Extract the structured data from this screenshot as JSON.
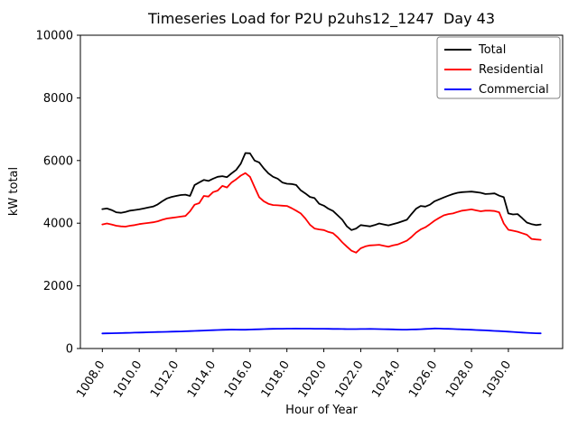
{
  "chart_data": {
    "type": "line",
    "title": "Timeseries Load for P2U p2uhs12_1247  Day 43",
    "xlabel": "Hour of Year",
    "ylabel": "kW total",
    "xlim": [
      1006.81,
      1032.94
    ],
    "ylim": [
      0,
      10000
    ],
    "grid": false,
    "legend_position": "upper right",
    "x_ticks": [
      1008,
      1010,
      1012,
      1014,
      1016,
      1018,
      1020,
      1022,
      1024,
      1026,
      1028,
      1030
    ],
    "x_tick_labels": [
      "1008.0",
      "1010.0",
      "1012.0",
      "1014.0",
      "1016.0",
      "1018.0",
      "1020.0",
      "1022.0",
      "1024.0",
      "1026.0",
      "1028.0",
      "1030.0"
    ],
    "y_ticks": [
      0,
      2000,
      4000,
      6000,
      8000,
      10000
    ],
    "y_tick_labels": [
      "0",
      "2000",
      "4000",
      "6000",
      "8000",
      "10000"
    ],
    "x": [
      1008.0,
      1008.25,
      1008.5,
      1008.75,
      1009.0,
      1009.25,
      1009.5,
      1009.75,
      1010.0,
      1010.25,
      1010.5,
      1010.75,
      1011.0,
      1011.25,
      1011.5,
      1011.75,
      1012.0,
      1012.25,
      1012.5,
      1012.75,
      1013.0,
      1013.25,
      1013.5,
      1013.75,
      1014.0,
      1014.25,
      1014.5,
      1014.75,
      1015.0,
      1015.25,
      1015.5,
      1015.75,
      1016.0,
      1016.25,
      1016.5,
      1016.75,
      1017.0,
      1017.25,
      1017.5,
      1017.75,
      1018.0,
      1018.25,
      1018.5,
      1018.75,
      1019.0,
      1019.25,
      1019.5,
      1019.75,
      1020.0,
      1020.25,
      1020.5,
      1020.75,
      1021.0,
      1021.25,
      1021.5,
      1021.75,
      1022.0,
      1022.25,
      1022.5,
      1022.75,
      1023.0,
      1023.25,
      1023.5,
      1023.75,
      1024.0,
      1024.25,
      1024.5,
      1024.75,
      1025.0,
      1025.25,
      1025.5,
      1025.75,
      1026.0,
      1026.25,
      1026.5,
      1026.75,
      1027.0,
      1027.25,
      1027.5,
      1027.75,
      1028.0,
      1028.25,
      1028.5,
      1028.75,
      1029.0,
      1029.25,
      1029.5,
      1029.75,
      1030.0,
      1030.25,
      1030.5,
      1030.75,
      1031.0,
      1031.25,
      1031.5,
      1031.75
    ],
    "series": [
      {
        "name": "Total",
        "color": "#000000",
        "values": [
          4450,
          4470,
          4420,
          4350,
          4330,
          4360,
          4400,
          4420,
          4440,
          4470,
          4500,
          4530,
          4600,
          4700,
          4790,
          4840,
          4870,
          4900,
          4910,
          4870,
          5220,
          5300,
          5380,
          5350,
          5420,
          5480,
          5500,
          5470,
          5590,
          5700,
          5900,
          6240,
          6230,
          6000,
          5940,
          5750,
          5590,
          5480,
          5420,
          5300,
          5260,
          5250,
          5220,
          5050,
          4950,
          4840,
          4800,
          4620,
          4560,
          4460,
          4390,
          4250,
          4110,
          3900,
          3780,
          3830,
          3940,
          3920,
          3900,
          3940,
          3990,
          3960,
          3930,
          3970,
          4010,
          4060,
          4110,
          4290,
          4460,
          4550,
          4530,
          4590,
          4700,
          4760,
          4820,
          4880,
          4930,
          4970,
          4990,
          5000,
          5010,
          4990,
          4970,
          4930,
          4940,
          4950,
          4880,
          4830,
          4310,
          4280,
          4290,
          4160,
          4020,
          3970,
          3940,
          3960
        ]
      },
      {
        "name": "Residential",
        "color": "#ff0000",
        "values": [
          3960,
          3990,
          3960,
          3920,
          3900,
          3890,
          3920,
          3940,
          3970,
          3990,
          4010,
          4030,
          4060,
          4110,
          4150,
          4170,
          4190,
          4210,
          4230,
          4380,
          4590,
          4640,
          4870,
          4850,
          4990,
          5040,
          5190,
          5140,
          5300,
          5400,
          5520,
          5600,
          5480,
          5150,
          4830,
          4700,
          4620,
          4580,
          4570,
          4560,
          4550,
          4480,
          4400,
          4310,
          4150,
          3950,
          3830,
          3800,
          3780,
          3720,
          3680,
          3550,
          3390,
          3250,
          3120,
          3060,
          3200,
          3260,
          3290,
          3300,
          3310,
          3280,
          3250,
          3290,
          3320,
          3380,
          3440,
          3560,
          3700,
          3800,
          3870,
          3970,
          4080,
          4170,
          4250,
          4290,
          4310,
          4360,
          4400,
          4420,
          4440,
          4410,
          4380,
          4400,
          4400,
          4390,
          4350,
          3990,
          3790,
          3760,
          3730,
          3680,
          3630,
          3500,
          3480,
          3470
        ]
      },
      {
        "name": "Commercial",
        "color": "#0000ff",
        "values": [
          480,
          483,
          486,
          490,
          494,
          498,
          502,
          506,
          510,
          514,
          518,
          522,
          526,
          530,
          534,
          538,
          542,
          546,
          550,
          556,
          562,
          568,
          574,
          580,
          586,
          591,
          596,
          600,
          604,
          601,
          598,
          600,
          605,
          610,
          615,
          620,
          624,
          627,
          630,
          632,
          634,
          635,
          636,
          635,
          634,
          633,
          632,
          631,
          630,
          628,
          626,
          624,
          622,
          621,
          620,
          621,
          622,
          623,
          624,
          622,
          620,
          617,
          614,
          610,
          605,
          602,
          603,
          607,
          612,
          618,
          625,
          632,
          640,
          636,
          630,
          627,
          623,
          617,
          610,
          605,
          600,
          592,
          585,
          578,
          570,
          562,
          555,
          548,
          540,
          530,
          520,
          510,
          500,
          494,
          488,
          485
        ]
      }
    ]
  }
}
